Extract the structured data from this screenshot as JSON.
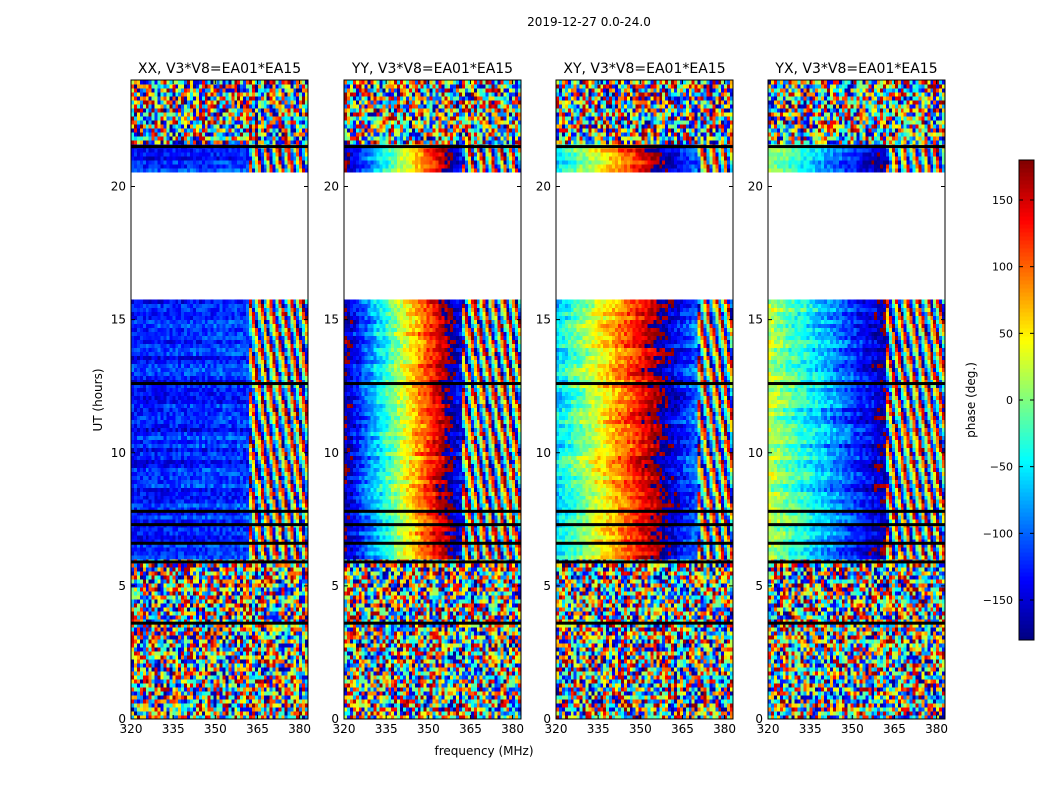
{
  "figure": {
    "suptitle": "2019-12-27 0.0-24.0",
    "xlabel": "frequency (MHz)",
    "ylabel": "UT (hours)"
  },
  "colorbar": {
    "label": "phase (deg.)",
    "vmin": -180,
    "vmax": 180,
    "ticks": [
      -150,
      -100,
      -50,
      0,
      50,
      100,
      150
    ],
    "tick_labels": [
      "−150",
      "−100",
      "−50",
      "0",
      "50",
      "100",
      "150"
    ],
    "colormap": "jet",
    "colors": [
      "#00007f",
      "#0000ff",
      "#007fff",
      "#00ffff",
      "#7fff7f",
      "#ffff00",
      "#ff7f00",
      "#ff0000",
      "#7f0000"
    ]
  },
  "chart_data": [
    {
      "type": "heatmap",
      "title": "XX, V3*V8=EA01*EA15",
      "xlabel": "",
      "ylabel": "UT (hours)",
      "xlim": [
        320,
        383
      ],
      "ylim": [
        0,
        24
      ],
      "xticks": [
        320,
        335,
        350,
        365,
        380
      ],
      "yticks": [
        0,
        5,
        10,
        15,
        20
      ],
      "value": "phase (deg.)",
      "gap_hours": [
        [
          15.7,
          20.6
        ]
      ],
      "flag_hours": [
        3.6,
        5.9,
        6.6,
        7.3,
        7.8,
        12.6,
        21.5
      ],
      "pattern": {
        "coherent_below_mhz": 362,
        "base_phase": -130,
        "slope_deg_per_mhz": 0.3
      }
    },
    {
      "type": "heatmap",
      "title": "YY, V3*V8=EA01*EA15",
      "xlabel": "frequency (MHz)",
      "ylabel": "",
      "xlim": [
        320,
        383
      ],
      "ylim": [
        0,
        24
      ],
      "xticks": [
        320,
        335,
        350,
        365,
        380
      ],
      "yticks": [
        0,
        5,
        10,
        15,
        20
      ],
      "value": "phase (deg.)",
      "gap_hours": [
        [
          15.7,
          20.6
        ]
      ],
      "flag_hours": [
        3.6,
        5.9,
        6.6,
        7.3,
        7.8,
        12.6,
        21.5
      ],
      "pattern": {
        "coherent_below_mhz": 362,
        "base_phase": -170,
        "slope_deg_per_mhz": 9.5
      }
    },
    {
      "type": "heatmap",
      "title": "XY, V3*V8=EA01*EA15",
      "xlabel": "",
      "ylabel": "",
      "xlim": [
        320,
        383
      ],
      "ylim": [
        0,
        24
      ],
      "xticks": [
        320,
        335,
        350,
        365,
        380
      ],
      "yticks": [
        0,
        5,
        10,
        15,
        20
      ],
      "value": "phase (deg.)",
      "gap_hours": [
        [
          15.7,
          20.6
        ]
      ],
      "flag_hours": [
        3.6,
        5.9,
        6.6,
        7.3,
        7.8,
        12.6,
        21.5
      ],
      "pattern": {
        "coherent_below_mhz": 370,
        "base_phase": -60,
        "slope_deg_per_mhz": 6.5
      }
    },
    {
      "type": "heatmap",
      "title": "YX, V3*V8=EA01*EA15",
      "xlabel": "",
      "ylabel": "",
      "xlim": [
        320,
        383
      ],
      "ylim": [
        0,
        24
      ],
      "xticks": [
        320,
        335,
        350,
        365,
        380
      ],
      "yticks": [
        0,
        5,
        10,
        15,
        20
      ],
      "value": "phase (deg.)",
      "gap_hours": [
        [
          15.7,
          20.6
        ]
      ],
      "flag_hours": [
        3.6,
        5.9,
        6.6,
        7.3,
        7.8,
        12.6,
        21.5
      ],
      "pattern": {
        "coherent_below_mhz": 362,
        "base_phase": 20,
        "slope_deg_per_mhz": -4.5
      }
    }
  ]
}
